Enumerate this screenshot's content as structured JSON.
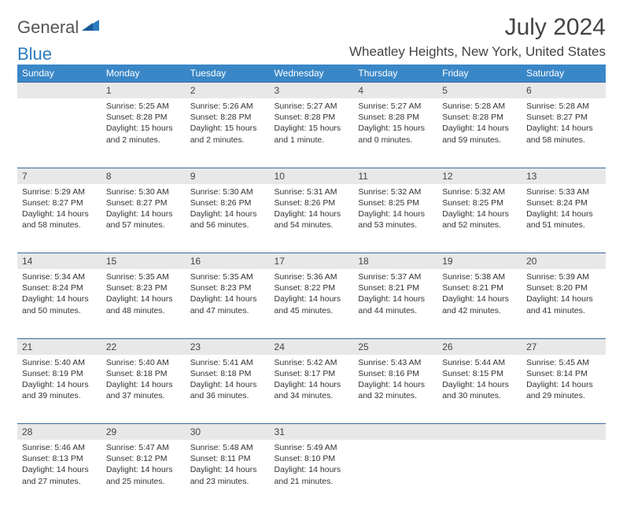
{
  "logo": {
    "text1": "General",
    "text2": "Blue"
  },
  "title": "July 2024",
  "location": "Wheatley Heights, New York, United States",
  "colors": {
    "header_bg": "#3a87c7",
    "header_text": "#ffffff",
    "daynum_bg": "#e8e8e8",
    "rule": "#3a6a9a",
    "logo_gray": "#555555",
    "logo_blue": "#2b7bbf"
  },
  "days": [
    "Sunday",
    "Monday",
    "Tuesday",
    "Wednesday",
    "Thursday",
    "Friday",
    "Saturday"
  ],
  "weeks": [
    [
      null,
      {
        "n": "1",
        "sr": "5:25 AM",
        "ss": "8:28 PM",
        "dl": "15 hours and 2 minutes."
      },
      {
        "n": "2",
        "sr": "5:26 AM",
        "ss": "8:28 PM",
        "dl": "15 hours and 2 minutes."
      },
      {
        "n": "3",
        "sr": "5:27 AM",
        "ss": "8:28 PM",
        "dl": "15 hours and 1 minute."
      },
      {
        "n": "4",
        "sr": "5:27 AM",
        "ss": "8:28 PM",
        "dl": "15 hours and 0 minutes."
      },
      {
        "n": "5",
        "sr": "5:28 AM",
        "ss": "8:28 PM",
        "dl": "14 hours and 59 minutes."
      },
      {
        "n": "6",
        "sr": "5:28 AM",
        "ss": "8:27 PM",
        "dl": "14 hours and 58 minutes."
      }
    ],
    [
      {
        "n": "7",
        "sr": "5:29 AM",
        "ss": "8:27 PM",
        "dl": "14 hours and 58 minutes."
      },
      {
        "n": "8",
        "sr": "5:30 AM",
        "ss": "8:27 PM",
        "dl": "14 hours and 57 minutes."
      },
      {
        "n": "9",
        "sr": "5:30 AM",
        "ss": "8:26 PM",
        "dl": "14 hours and 56 minutes."
      },
      {
        "n": "10",
        "sr": "5:31 AM",
        "ss": "8:26 PM",
        "dl": "14 hours and 54 minutes."
      },
      {
        "n": "11",
        "sr": "5:32 AM",
        "ss": "8:25 PM",
        "dl": "14 hours and 53 minutes."
      },
      {
        "n": "12",
        "sr": "5:32 AM",
        "ss": "8:25 PM",
        "dl": "14 hours and 52 minutes."
      },
      {
        "n": "13",
        "sr": "5:33 AM",
        "ss": "8:24 PM",
        "dl": "14 hours and 51 minutes."
      }
    ],
    [
      {
        "n": "14",
        "sr": "5:34 AM",
        "ss": "8:24 PM",
        "dl": "14 hours and 50 minutes."
      },
      {
        "n": "15",
        "sr": "5:35 AM",
        "ss": "8:23 PM",
        "dl": "14 hours and 48 minutes."
      },
      {
        "n": "16",
        "sr": "5:35 AM",
        "ss": "8:23 PM",
        "dl": "14 hours and 47 minutes."
      },
      {
        "n": "17",
        "sr": "5:36 AM",
        "ss": "8:22 PM",
        "dl": "14 hours and 45 minutes."
      },
      {
        "n": "18",
        "sr": "5:37 AM",
        "ss": "8:21 PM",
        "dl": "14 hours and 44 minutes."
      },
      {
        "n": "19",
        "sr": "5:38 AM",
        "ss": "8:21 PM",
        "dl": "14 hours and 42 minutes."
      },
      {
        "n": "20",
        "sr": "5:39 AM",
        "ss": "8:20 PM",
        "dl": "14 hours and 41 minutes."
      }
    ],
    [
      {
        "n": "21",
        "sr": "5:40 AM",
        "ss": "8:19 PM",
        "dl": "14 hours and 39 minutes."
      },
      {
        "n": "22",
        "sr": "5:40 AM",
        "ss": "8:18 PM",
        "dl": "14 hours and 37 minutes."
      },
      {
        "n": "23",
        "sr": "5:41 AM",
        "ss": "8:18 PM",
        "dl": "14 hours and 36 minutes."
      },
      {
        "n": "24",
        "sr": "5:42 AM",
        "ss": "8:17 PM",
        "dl": "14 hours and 34 minutes."
      },
      {
        "n": "25",
        "sr": "5:43 AM",
        "ss": "8:16 PM",
        "dl": "14 hours and 32 minutes."
      },
      {
        "n": "26",
        "sr": "5:44 AM",
        "ss": "8:15 PM",
        "dl": "14 hours and 30 minutes."
      },
      {
        "n": "27",
        "sr": "5:45 AM",
        "ss": "8:14 PM",
        "dl": "14 hours and 29 minutes."
      }
    ],
    [
      {
        "n": "28",
        "sr": "5:46 AM",
        "ss": "8:13 PM",
        "dl": "14 hours and 27 minutes."
      },
      {
        "n": "29",
        "sr": "5:47 AM",
        "ss": "8:12 PM",
        "dl": "14 hours and 25 minutes."
      },
      {
        "n": "30",
        "sr": "5:48 AM",
        "ss": "8:11 PM",
        "dl": "14 hours and 23 minutes."
      },
      {
        "n": "31",
        "sr": "5:49 AM",
        "ss": "8:10 PM",
        "dl": "14 hours and 21 minutes."
      },
      null,
      null,
      null
    ]
  ],
  "labels": {
    "sunrise": "Sunrise: ",
    "sunset": "Sunset: ",
    "daylight": "Daylight: "
  }
}
